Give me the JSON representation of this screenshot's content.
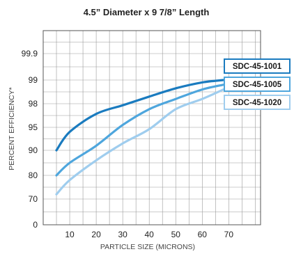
{
  "chart_data": {
    "type": "line",
    "title": "4.5” Diameter x 9 7/8” Length",
    "xlabel": "PARTICLE SIZE (MICRONS)",
    "ylabel": "PERCENT EFFICIENCY*",
    "x_ticks": [
      "10",
      "20",
      "30",
      "40",
      "50",
      "60",
      "70"
    ],
    "y_ticks": [
      "0",
      "70",
      "80",
      "90",
      "95",
      "98",
      "99",
      "99.9"
    ],
    "xlim": [
      0,
      82
    ],
    "y_scale": "categorical-efficiency",
    "grid": true,
    "legend_position": "right",
    "series": [
      {
        "name": "SDC-45-1001",
        "color": "#1a7bbf",
        "points": [
          [
            5,
            90
          ],
          [
            10,
            94
          ],
          [
            20,
            96.7
          ],
          [
            30,
            97.8
          ],
          [
            40,
            98.3
          ],
          [
            50,
            98.65
          ],
          [
            60,
            98.9
          ],
          [
            68,
            99
          ]
        ]
      },
      {
        "name": "SDC-45-1005",
        "color": "#4ea6dd",
        "points": [
          [
            5,
            80
          ],
          [
            10,
            85
          ],
          [
            20,
            91
          ],
          [
            30,
            95.3
          ],
          [
            40,
            97.3
          ],
          [
            50,
            98.2
          ],
          [
            60,
            98.6
          ],
          [
            68,
            98.8
          ]
        ]
      },
      {
        "name": "SDC-45-1020",
        "color": "#9fcdee",
        "points": [
          [
            5,
            72
          ],
          [
            10,
            78
          ],
          [
            20,
            86
          ],
          [
            30,
            91.5
          ],
          [
            40,
            94.6
          ],
          [
            50,
            97.3
          ],
          [
            60,
            98.2
          ],
          [
            68,
            98.6
          ]
        ]
      }
    ]
  }
}
